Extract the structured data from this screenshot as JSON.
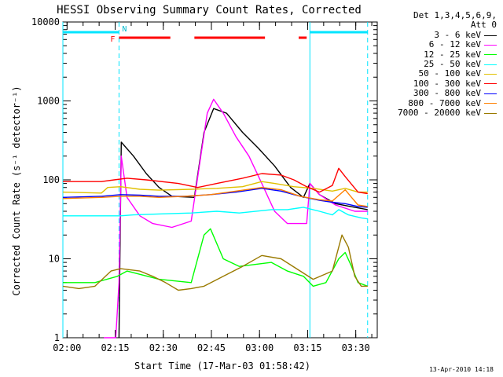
{
  "chart_data": {
    "type": "line",
    "title": "HESSI Observing Summary Count Rates, Corrected",
    "xlabel": "Start Time (17-Mar-03 01:58:42)",
    "ylabel": "Corrected Count Rate (s⁻¹ detector⁻¹)",
    "y_scale": "log",
    "ylim": [
      1,
      10000
    ],
    "xlim_minutes": [
      0,
      98
    ],
    "x_ticks": [
      {
        "label": "02:00",
        "min": 1.3
      },
      {
        "label": "02:15",
        "min": 16.3
      },
      {
        "label": "02:30",
        "min": 31.3
      },
      {
        "label": "02:45",
        "min": 46.3
      },
      {
        "label": "03:00",
        "min": 61.3
      },
      {
        "label": "03:15",
        "min": 76.3
      },
      {
        "label": "03:30",
        "min": 91.3
      }
    ],
    "y_ticks": [
      {
        "label": "1",
        "v": 1
      },
      {
        "label": "10",
        "v": 10
      },
      {
        "label": "100",
        "v": 100
      },
      {
        "label": "1000",
        "v": 1000
      },
      {
        "label": "10000",
        "v": 10000
      }
    ],
    "legend_header": [
      "Det 1,3,4,5,6,9,",
      "Att 0"
    ],
    "legend_position": "outside-right",
    "series": [
      {
        "name": "3 - 6 keV",
        "color": "#000000",
        "points": [
          [
            17.5,
            1
          ],
          [
            18.2,
            300
          ],
          [
            22,
            200
          ],
          [
            26,
            120
          ],
          [
            30,
            80
          ],
          [
            34,
            62
          ],
          [
            41,
            60
          ],
          [
            44,
            400
          ],
          [
            47,
            800
          ],
          [
            51,
            700
          ],
          [
            56,
            400
          ],
          [
            61,
            250
          ],
          [
            66,
            150
          ],
          [
            71,
            80
          ],
          [
            75,
            60
          ],
          [
            77,
            90
          ],
          [
            80,
            65
          ],
          [
            85,
            50
          ],
          [
            91,
            45
          ],
          [
            95,
            42
          ]
        ]
      },
      {
        "name": "6 - 12 keV",
        "color": "#ff00ff",
        "points": [
          [
            12.8,
            1
          ],
          [
            14,
            1
          ],
          [
            16.5,
            1
          ],
          [
            17.5,
            5
          ],
          [
            18.2,
            200
          ],
          [
            20,
            60
          ],
          [
            24,
            35
          ],
          [
            28,
            28
          ],
          [
            34,
            25
          ],
          [
            40,
            30
          ],
          [
            43,
            200
          ],
          [
            45,
            700
          ],
          [
            47,
            1050
          ],
          [
            50,
            700
          ],
          [
            54,
            350
          ],
          [
            58,
            200
          ],
          [
            62,
            90
          ],
          [
            66,
            40
          ],
          [
            70,
            28
          ],
          [
            76,
            28
          ],
          [
            77,
            90
          ],
          [
            80,
            65
          ],
          [
            85,
            48
          ],
          [
            91,
            40
          ],
          [
            95,
            40
          ]
        ]
      },
      {
        "name": "12 - 25 keV",
        "color": "#00ff00",
        "points": [
          [
            0,
            5
          ],
          [
            10,
            5
          ],
          [
            17,
            6
          ],
          [
            20,
            7
          ],
          [
            30,
            5.5
          ],
          [
            40,
            5
          ],
          [
            44,
            20
          ],
          [
            46,
            24
          ],
          [
            50,
            10
          ],
          [
            55,
            8
          ],
          [
            65,
            9
          ],
          [
            70,
            7
          ],
          [
            75,
            6
          ],
          [
            78,
            4.5
          ],
          [
            82,
            5
          ],
          [
            86,
            10
          ],
          [
            88,
            12
          ],
          [
            90,
            8
          ],
          [
            92,
            5
          ],
          [
            95,
            4.5
          ]
        ]
      },
      {
        "name": "25 - 50 keV",
        "color": "#00ffff",
        "points": [
          [
            0,
            35
          ],
          [
            10,
            35
          ],
          [
            18,
            35
          ],
          [
            22,
            36
          ],
          [
            30,
            37
          ],
          [
            40,
            38
          ],
          [
            48,
            40
          ],
          [
            55,
            38
          ],
          [
            65,
            42
          ],
          [
            70,
            42
          ],
          [
            75,
            45
          ],
          [
            80,
            40
          ],
          [
            84,
            36
          ],
          [
            86,
            42
          ],
          [
            89,
            36
          ],
          [
            93,
            33
          ],
          [
            95,
            32
          ]
        ]
      },
      {
        "name": "50 - 100 keV",
        "color": "#e0c000",
        "points": [
          [
            0,
            70
          ],
          [
            12,
            68
          ],
          [
            14,
            80
          ],
          [
            18,
            82
          ],
          [
            24,
            76
          ],
          [
            30,
            74
          ],
          [
            40,
            76
          ],
          [
            48,
            78
          ],
          [
            56,
            82
          ],
          [
            62,
            95
          ],
          [
            66,
            90
          ],
          [
            72,
            82
          ],
          [
            78,
            78
          ],
          [
            84,
            72
          ],
          [
            88,
            78
          ],
          [
            92,
            70
          ],
          [
            95,
            70
          ]
        ]
      },
      {
        "name": "100 - 300 keV",
        "color": "#ff0000",
        "points": [
          [
            0,
            95
          ],
          [
            12,
            95
          ],
          [
            16,
            100
          ],
          [
            20,
            105
          ],
          [
            26,
            100
          ],
          [
            36,
            90
          ],
          [
            42,
            80
          ],
          [
            48,
            90
          ],
          [
            56,
            105
          ],
          [
            62,
            120
          ],
          [
            68,
            115
          ],
          [
            72,
            100
          ],
          [
            76,
            82
          ],
          [
            80,
            70
          ],
          [
            84,
            85
          ],
          [
            86,
            140
          ],
          [
            88,
            110
          ],
          [
            92,
            70
          ],
          [
            95,
            67
          ]
        ]
      },
      {
        "name": "300 - 800 keV",
        "color": "#0000ff",
        "points": [
          [
            0,
            60
          ],
          [
            12,
            62
          ],
          [
            18,
            65
          ],
          [
            24,
            64
          ],
          [
            30,
            62
          ],
          [
            38,
            62
          ],
          [
            46,
            65
          ],
          [
            54,
            70
          ],
          [
            62,
            78
          ],
          [
            68,
            72
          ],
          [
            74,
            62
          ],
          [
            80,
            55
          ],
          [
            84,
            52
          ],
          [
            88,
            50
          ],
          [
            92,
            46
          ],
          [
            95,
            45
          ]
        ]
      },
      {
        "name": "800 - 7000 keV",
        "color": "#ff7f00",
        "points": [
          [
            0,
            58
          ],
          [
            12,
            60
          ],
          [
            18,
            62
          ],
          [
            24,
            62
          ],
          [
            30,
            60
          ],
          [
            38,
            62
          ],
          [
            46,
            65
          ],
          [
            54,
            72
          ],
          [
            62,
            80
          ],
          [
            68,
            75
          ],
          [
            74,
            62
          ],
          [
            80,
            56
          ],
          [
            84,
            54
          ],
          [
            88,
            75
          ],
          [
            90,
            60
          ],
          [
            92,
            48
          ],
          [
            95,
            46
          ]
        ]
      },
      {
        "name": "7000 - 20000 keV",
        "color": "#9a7a00",
        "points": [
          [
            0,
            4.5
          ],
          [
            5,
            4.2
          ],
          [
            10,
            4.5
          ],
          [
            15,
            7
          ],
          [
            18,
            7.5
          ],
          [
            24,
            7
          ],
          [
            28,
            6
          ],
          [
            32,
            5
          ],
          [
            36,
            4
          ],
          [
            40,
            4.2
          ],
          [
            44,
            4.5
          ],
          [
            50,
            6
          ],
          [
            56,
            8
          ],
          [
            62,
            11
          ],
          [
            68,
            10
          ],
          [
            74,
            7
          ],
          [
            78,
            5.5
          ],
          [
            84,
            7
          ],
          [
            87,
            20
          ],
          [
            89,
            14
          ],
          [
            91,
            6
          ],
          [
            93,
            4.5
          ],
          [
            95,
            4.5
          ]
        ]
      }
    ],
    "annotations": {
      "mode_bar_labels": [
        "F",
        "N"
      ],
      "flare_intervals": [
        [
          17.5,
          33.5
        ],
        [
          41,
          63
        ],
        [
          73.5,
          76
        ]
      ],
      "night_intervals": [
        [
          0,
          17.5
        ],
        [
          77,
          95
        ]
      ],
      "sun_boundaries": [
        0,
        17.5,
        77,
        95
      ]
    }
  },
  "footer": {
    "date_stamp": "13-Apr-2010 14:18"
  }
}
